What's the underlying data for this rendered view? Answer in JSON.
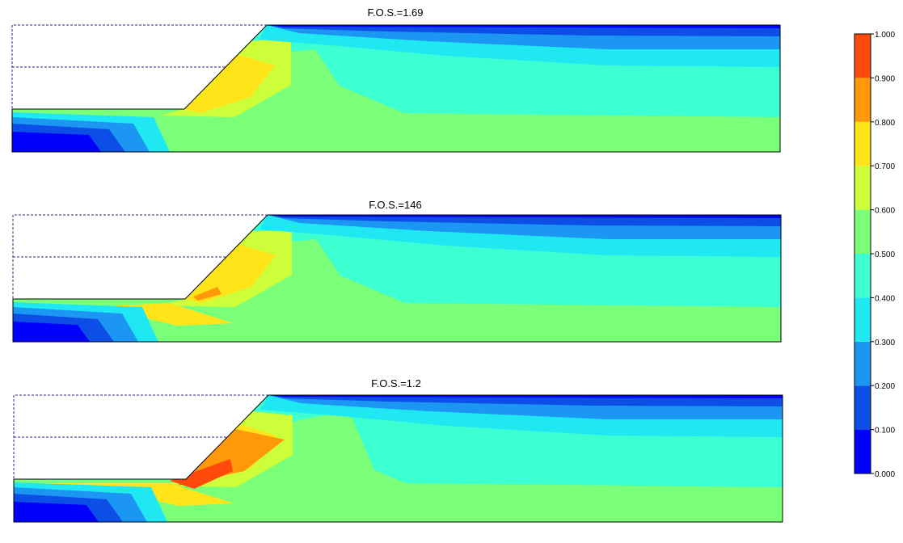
{
  "chart_data": {
    "type": "heatmap",
    "panels": [
      {
        "title": "F.O.S.=1.69"
      },
      {
        "title": "F.O.S.=146"
      },
      {
        "title": "F.O.S.=1.2"
      }
    ],
    "colorbar": {
      "range": [
        0,
        1
      ],
      "ticks": [
        "0.000",
        "0.100",
        "0.200",
        "0.300",
        "0.400",
        "0.500",
        "0.600",
        "0.700",
        "0.800",
        "0.900",
        "1.000"
      ],
      "colors": [
        "#0000ff",
        "#0d4fe6",
        "#1b96f2",
        "#1fe8f2",
        "#3cffd2",
        "#7bff78",
        "#ccff3a",
        "#ffe41a",
        "#ff990a",
        "#ff4a0c"
      ],
      "placement": "right"
    }
  }
}
